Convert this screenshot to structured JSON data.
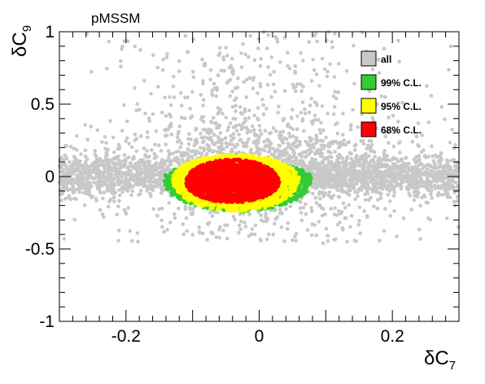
{
  "chart_data": {
    "type": "scatter",
    "title": "pMSSM",
    "xlabel": {
      "main": "δC",
      "sub": "7"
    },
    "ylabel": {
      "main": "δC",
      "sub": "9"
    },
    "xlim": [
      -0.3,
      0.3
    ],
    "ylim": [
      -1,
      1
    ],
    "x_ticks": [
      {
        "value": -0.2,
        "label": "-0.2"
      },
      {
        "value": 0,
        "label": "0"
      },
      {
        "value": 0.2,
        "label": "0.2"
      }
    ],
    "y_ticks": [
      {
        "value": -1,
        "label": "-1"
      },
      {
        "value": -0.5,
        "label": "-0.5"
      },
      {
        "value": 0,
        "label": "0"
      },
      {
        "value": 0.5,
        "label": "0.5"
      },
      {
        "value": 1,
        "label": "1"
      }
    ],
    "grid": false,
    "legend_position": "top-right",
    "series": [
      {
        "name": "all",
        "color": "#c8c8c8",
        "x_range": [
          -0.3,
          0.3
        ],
        "y_core_range": [
          -0.2,
          0.2
        ],
        "y_range": [
          -0.6,
          1.0
        ],
        "center": [
          0,
          0
        ]
      },
      {
        "name": "99% C.L.",
        "color": "#33cc33",
        "x_range": [
          -0.145,
          0.085
        ],
        "y_range": [
          -0.25,
          0.14
        ],
        "center": [
          -0.035,
          -0.03
        ]
      },
      {
        "name": "95% C.L.",
        "color": "#ffff00",
        "x_range": [
          -0.13,
          0.06
        ],
        "y_range": [
          -0.25,
          0.16
        ],
        "center": [
          -0.035,
          -0.03
        ]
      },
      {
        "name": "68% C.L.",
        "color": "#ff0000",
        "x_range": [
          -0.11,
          0.03
        ],
        "y_range": [
          -0.25,
          0.14
        ],
        "center": [
          -0.04,
          -0.04
        ]
      }
    ]
  }
}
